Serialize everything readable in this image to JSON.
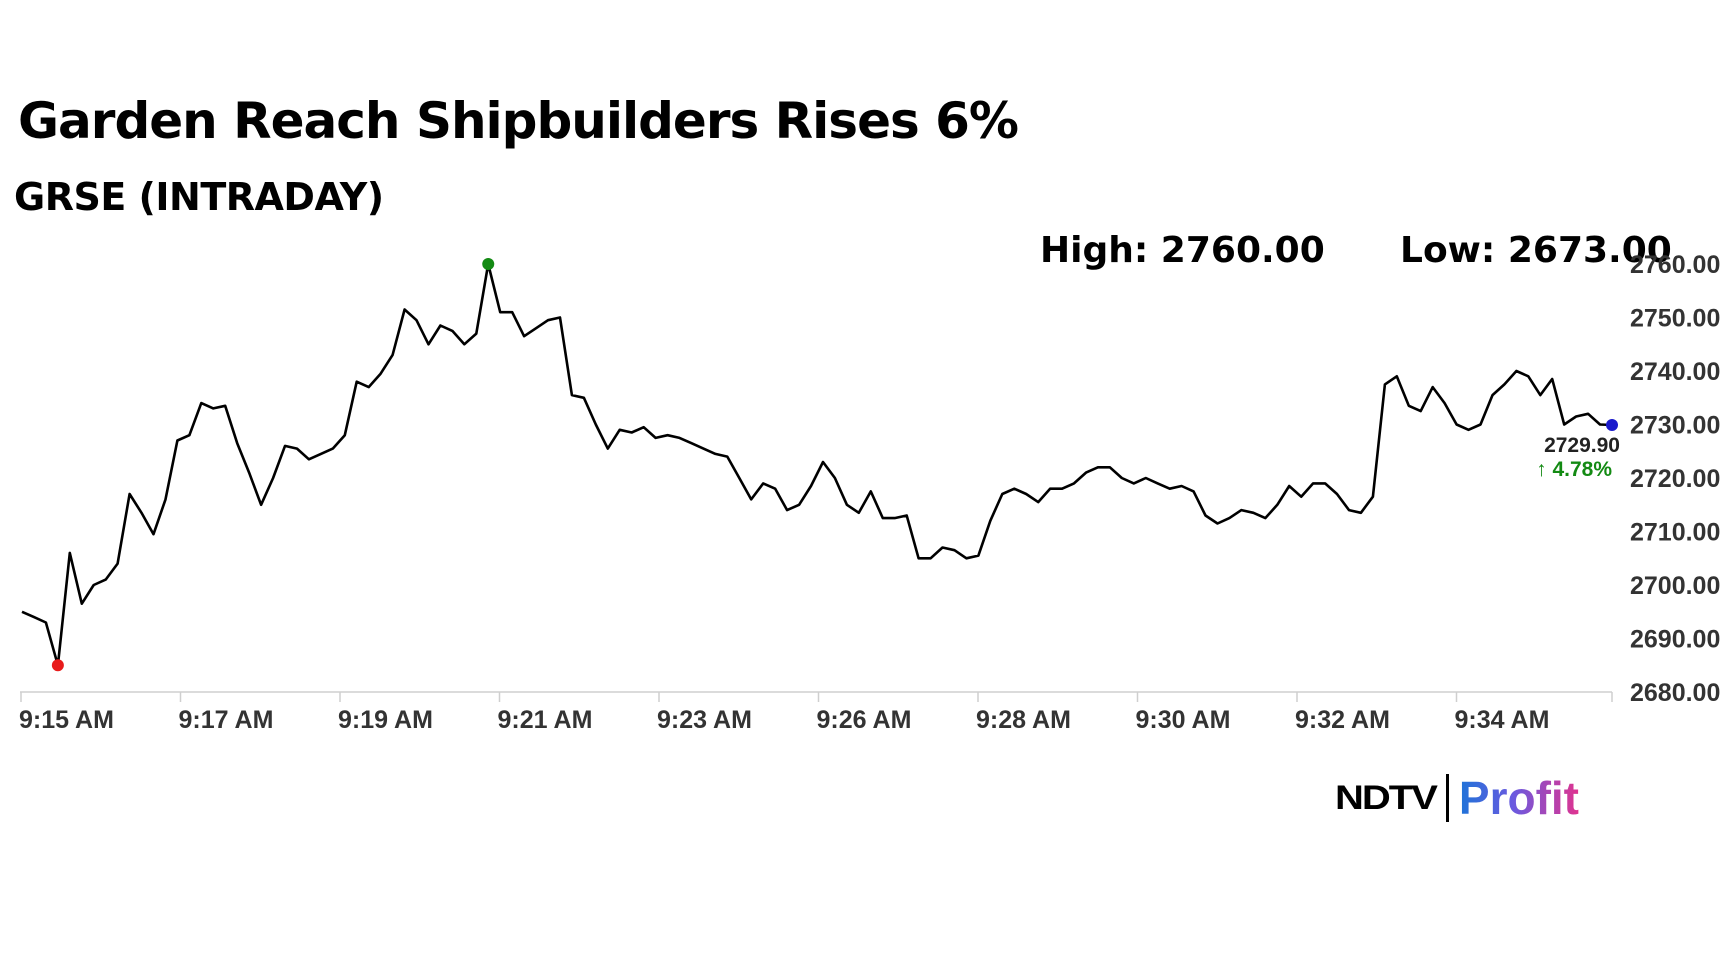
{
  "header": {
    "title": "Garden Reach Shipbuilders Rises 6%",
    "subtitle": "GRSE (INTRADAY)",
    "high_label": "High: 2760.00",
    "low_label": "Low: 2673.00"
  },
  "brand": {
    "ndtv": "NDTV",
    "profit": "Profit"
  },
  "colors": {
    "line": "#000000",
    "high_marker": "#138a13",
    "low_marker": "#e81b1b",
    "last_marker": "#1a1acc",
    "change_positive": "#138a13",
    "axis_text": "#333333"
  },
  "chart_data": {
    "type": "line",
    "title": "Garden Reach Shipbuilders Rises 6%",
    "subtitle": "GRSE (INTRADAY)",
    "high": 2760.0,
    "low": 2673.0,
    "last_value": "2729.90",
    "change": "4.78%",
    "change_arrow": "↑",
    "x_tick_labels": [
      "9:15 AM",
      "9:17 AM",
      "9:19 AM",
      "9:21 AM",
      "9:23 AM",
      "9:26 AM",
      "9:28 AM",
      "9:30 AM",
      "9:32 AM",
      "9:34 AM"
    ],
    "y_tick_labels": [
      "2680.00",
      "2690.00",
      "2700.00",
      "2710.00",
      "2720.00",
      "2730.00",
      "2740.00",
      "2750.00",
      "2760.00"
    ],
    "ylim": [
      2680,
      2760
    ],
    "y_axis_position": "right",
    "grid": false,
    "values": [
      2695.0,
      2694.0,
      2693.0,
      2685.0,
      2706.0,
      2696.5,
      2700.0,
      2701.0,
      2704.0,
      2717.0,
      2713.5,
      2709.5,
      2716.0,
      2727.0,
      2728.0,
      2734.0,
      2733.0,
      2733.5,
      2726.5,
      2721.0,
      2715.0,
      2720.0,
      2726.0,
      2725.5,
      2723.5,
      2724.5,
      2725.5,
      2728.0,
      2738.0,
      2737.0,
      2739.5,
      2743.0,
      2751.5,
      2749.5,
      2745.0,
      2748.5,
      2747.5,
      2745.0,
      2747.0,
      2760.0,
      2751.0,
      2751.0,
      2746.5,
      2748.0,
      2749.5,
      2750.0,
      2735.5,
      2735.0,
      2730.0,
      2725.5,
      2729.0,
      2728.5,
      2729.5,
      2727.5,
      2728.0,
      2727.5,
      2726.5,
      2725.5,
      2724.5,
      2724.0,
      2720.0,
      2716.0,
      2719.0,
      2718.0,
      2714.0,
      2715.0,
      2718.5,
      2723.0,
      2720.0,
      2715.0,
      2713.5,
      2717.5,
      2712.5,
      2712.5,
      2713.0,
      2705.0,
      2705.0,
      2707.0,
      2706.5,
      2705.0,
      2705.5,
      2712.0,
      2717.0,
      2718.0,
      2717.0,
      2715.5,
      2718.0,
      2718.0,
      2719.0,
      2721.0,
      2722.0,
      2722.0,
      2720.0,
      2719.0,
      2720.0,
      2719.0,
      2718.0,
      2718.5,
      2717.5,
      2713.0,
      2711.5,
      2712.5,
      2714.0,
      2713.5,
      2712.5,
      2715.0,
      2718.5,
      2716.5,
      2719.0,
      2719.0,
      2717.0,
      2714.0,
      2713.5,
      2716.5,
      2737.5,
      2739.0,
      2733.5,
      2732.5,
      2737.0,
      2734.0,
      2730.0,
      2729.0,
      2730.0,
      2735.5,
      2737.5,
      2740.0,
      2739.0,
      2735.5,
      2738.5,
      2730.0,
      2731.5,
      2732.0,
      2730.0,
      2729.9
    ]
  }
}
